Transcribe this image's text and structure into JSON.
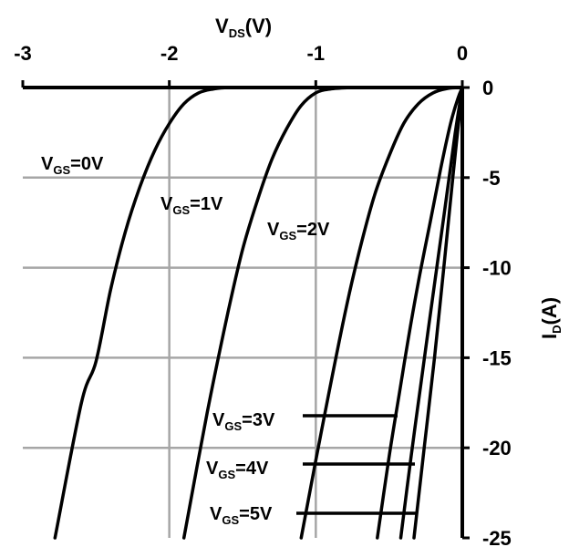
{
  "chart_data": {
    "type": "line",
    "title": "",
    "xlabel": {
      "main": "V",
      "sub": "DS",
      "unit": "(V)"
    },
    "ylabel": {
      "main": "I",
      "sub": "D",
      "unit": "(A)"
    },
    "xlim": [
      -3,
      0
    ],
    "ylim": [
      -25,
      0
    ],
    "x_ticks": [
      -3,
      -2,
      -1,
      0
    ],
    "y_ticks": [
      0,
      -5,
      -10,
      -15,
      -20,
      -25
    ],
    "grid": true,
    "series": [
      {
        "name": "VGS=0V",
        "label": {
          "main": "V",
          "sub": "GS",
          "value": "=0V"
        },
        "points": [
          [
            -2.78,
            -25
          ],
          [
            -2.6,
            -17.5
          ],
          [
            -2.5,
            -15.2
          ],
          [
            -2.4,
            -11.2
          ],
          [
            -2.3,
            -8
          ],
          [
            -2.2,
            -5.5
          ],
          [
            -2.1,
            -3.5
          ],
          [
            -2.0,
            -2
          ],
          [
            -1.9,
            -0.9
          ],
          [
            -1.8,
            -0.3
          ],
          [
            -1.7,
            -0.08
          ],
          [
            -1.6,
            0
          ]
        ]
      },
      {
        "name": "VGS=1V",
        "label": {
          "main": "V",
          "sub": "GS",
          "value": "=1V"
        },
        "points": [
          [
            -1.9,
            -25
          ],
          [
            -1.74,
            -18
          ],
          [
            -1.6,
            -12.5
          ],
          [
            -1.5,
            -9
          ],
          [
            -1.4,
            -6.3
          ],
          [
            -1.3,
            -4
          ],
          [
            -1.2,
            -2.3
          ],
          [
            -1.1,
            -1
          ],
          [
            -1.0,
            -0.3
          ],
          [
            -0.9,
            -0.08
          ],
          [
            -0.75,
            0
          ]
        ]
      },
      {
        "name": "VGS=2V",
        "label": {
          "main": "V",
          "sub": "GS",
          "value": "=2V"
        },
        "points": [
          [
            -1.1,
            -25
          ],
          [
            -0.96,
            -19
          ],
          [
            -0.8,
            -12.5
          ],
          [
            -0.7,
            -9
          ],
          [
            -0.6,
            -6
          ],
          [
            -0.5,
            -3.8
          ],
          [
            -0.4,
            -2
          ],
          [
            -0.3,
            -0.9
          ],
          [
            -0.2,
            -0.3
          ],
          [
            -0.1,
            -0.05
          ],
          [
            0,
            0
          ]
        ]
      },
      {
        "name": "VGS=3V",
        "label": {
          "main": "V",
          "sub": "GS",
          "value": "=3V"
        },
        "points": [
          [
            -0.58,
            -25
          ],
          [
            -0.5,
            -20.5
          ],
          [
            -0.43,
            -17
          ],
          [
            -0.37,
            -14
          ],
          [
            -0.3,
            -10.8
          ],
          [
            -0.22,
            -7.5
          ],
          [
            -0.15,
            -4.6
          ],
          [
            -0.08,
            -2
          ],
          [
            -0.03,
            -0.6
          ],
          [
            0,
            0
          ]
        ]
      },
      {
        "name": "VGS=4V",
        "label": {
          "main": "V",
          "sub": "GS",
          "value": "=4V"
        },
        "points": [
          [
            -0.42,
            -25
          ],
          [
            -0.35,
            -20.5
          ],
          [
            -0.28,
            -16.3
          ],
          [
            -0.2,
            -11.5
          ],
          [
            -0.12,
            -6.8
          ],
          [
            -0.05,
            -2.6
          ],
          [
            0,
            0
          ]
        ]
      },
      {
        "name": "VGS=5V",
        "label": {
          "main": "V",
          "sub": "GS",
          "value": "=5V"
        },
        "points": [
          [
            -0.33,
            -25
          ],
          [
            -0.26,
            -20
          ],
          [
            -0.19,
            -15
          ],
          [
            -0.12,
            -9.5
          ],
          [
            -0.06,
            -4.6
          ],
          [
            0,
            0
          ]
        ]
      }
    ]
  }
}
